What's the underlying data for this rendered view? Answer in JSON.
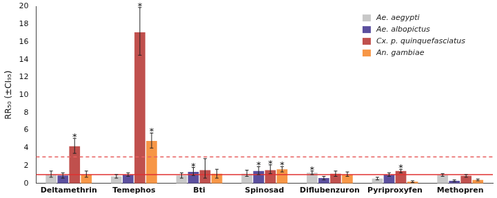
{
  "chart_data": {
    "type": "bar",
    "y_label": "RR₅₀ (±CI₉₅)",
    "categories": [
      "Deltamethrin",
      "Temephos",
      "Bti",
      "Spinosad",
      "Diflubenzuron",
      "Pyriproxyfen",
      "Methopren"
    ],
    "series": [
      {
        "name": "Ae. aegypti",
        "color": "#c8c8c8",
        "values": [
          1.0,
          0.8,
          0.9,
          1.1,
          1.2,
          0.55,
          0.95
        ],
        "error_low": [
          0.7,
          0.6,
          0.6,
          0.8,
          1.0,
          0.4,
          0.8
        ],
        "error_high": [
          1.4,
          1.0,
          1.2,
          1.5,
          1.4,
          0.7,
          1.1
        ]
      },
      {
        "name": "Ae. albopictus",
        "color": "#5b4f9e",
        "values": [
          0.9,
          1.0,
          1.3,
          1.4,
          0.6,
          1.0,
          0.3
        ],
        "error_low": [
          0.6,
          0.8,
          0.9,
          1.0,
          0.4,
          0.8,
          0.2
        ],
        "error_high": [
          1.2,
          1.2,
          1.8,
          1.9,
          0.8,
          1.2,
          0.4
        ]
      },
      {
        "name": "Cx. p. quinquefasciatus",
        "color": "#c0504d",
        "values": [
          4.2,
          17.1,
          1.5,
          1.5,
          1.1,
          1.4,
          0.85
        ],
        "error_low": [
          3.4,
          14.5,
          0.6,
          1.1,
          0.8,
          1.2,
          0.7
        ],
        "error_high": [
          5.1,
          19.9,
          2.8,
          2.1,
          1.4,
          1.6,
          1.0
        ]
      },
      {
        "name": "An. gambiae",
        "color": "#f79646",
        "values": [
          1.0,
          4.8,
          1.1,
          1.6,
          1.0,
          0.2,
          0.4
        ],
        "error_low": [
          0.7,
          4.0,
          0.6,
          1.3,
          0.8,
          0.1,
          0.3
        ],
        "error_high": [
          1.4,
          5.7,
          1.6,
          1.9,
          1.3,
          0.3,
          0.5
        ]
      }
    ],
    "annotations": [
      {
        "text": "*",
        "category": "Deltamethrin",
        "series": "Cx. p. quinquefasciatus"
      },
      {
        "text": "*",
        "category": "Temephos",
        "series": "Cx. p. quinquefasciatus"
      },
      {
        "text": "*",
        "category": "Temephos",
        "series": "An. gambiae"
      },
      {
        "text": "*",
        "category": "Bti",
        "series": "Ae. albopictus"
      },
      {
        "text": "*",
        "category": "Spinosad",
        "series": "Ae. albopictus"
      },
      {
        "text": "*",
        "category": "Spinosad",
        "series": "Cx. p. quinquefasciatus"
      },
      {
        "text": "*",
        "category": "Spinosad",
        "series": "An. gambiae"
      },
      {
        "text": "*",
        "category": "Diflubenzuron",
        "series": "Ae. aegypti"
      },
      {
        "text": "*",
        "category": "Pyriproxyfen",
        "series": "Cx. p. quinquefasciatus"
      }
    ],
    "reference_lines": [
      {
        "value": 1,
        "color": "#e03030",
        "line_style": "solid"
      },
      {
        "value": 3,
        "color": "#e86060",
        "line_style": "dashed"
      }
    ],
    "ylim": [
      0,
      20
    ],
    "yticks": [
      0,
      2,
      4,
      6,
      8,
      10,
      12,
      14,
      16,
      18,
      20
    ],
    "grid": false,
    "legend": "upper right"
  }
}
